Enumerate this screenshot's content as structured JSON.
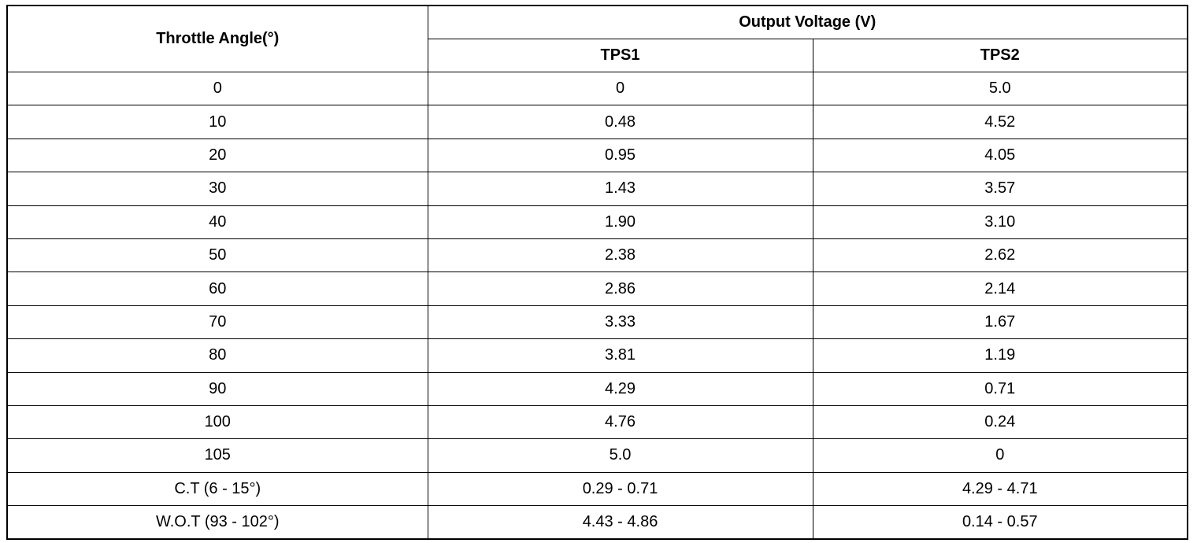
{
  "table": {
    "header": {
      "angle": "Throttle Angle(°)",
      "voltage": "Output Voltage (V)",
      "tps1": "TPS1",
      "tps2": "TPS2"
    },
    "rows": [
      [
        "0",
        "0",
        "5.0"
      ],
      [
        "10",
        "0.48",
        "4.52"
      ],
      [
        "20",
        "0.95",
        "4.05"
      ],
      [
        "30",
        "1.43",
        "3.57"
      ],
      [
        "40",
        "1.90",
        "3.10"
      ],
      [
        "50",
        "2.38",
        "2.62"
      ],
      [
        "60",
        "2.86",
        "2.14"
      ],
      [
        "70",
        "3.33",
        "1.67"
      ],
      [
        "80",
        "3.81",
        "1.19"
      ],
      [
        "90",
        "4.29",
        "0.71"
      ],
      [
        "100",
        "4.76",
        "0.24"
      ],
      [
        "105",
        "5.0",
        "0"
      ],
      [
        "C.T (6 - 15°)",
        "0.29 - 0.71",
        "4.29 - 4.71"
      ],
      [
        "W.O.T (93 - 102°)",
        "4.43 - 4.86",
        "0.14 - 0.57"
      ]
    ]
  }
}
